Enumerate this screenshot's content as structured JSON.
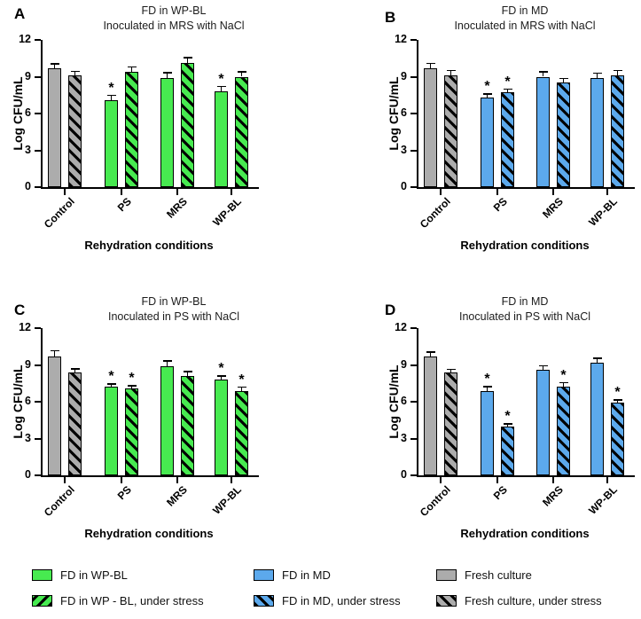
{
  "figure": {
    "ylabel": "Log CFU/mL",
    "xlabel": "Rehydration conditions",
    "yticks": [
      0,
      3,
      6,
      9,
      12
    ],
    "ylim": [
      0,
      12
    ],
    "sig_marker": "*"
  },
  "colors": {
    "green": "#47ea50",
    "blue": "#5ca9ec",
    "gray": "#acacac",
    "axis": "#000000",
    "hatch": "#000000"
  },
  "legend": {
    "items": [
      {
        "label": "FD in WP-BL",
        "color": "green",
        "hatch": false
      },
      {
        "label": "FD in MD",
        "color": "blue",
        "hatch": false
      },
      {
        "label": "Fresh culture",
        "color": "gray",
        "hatch": false
      },
      {
        "label": "FD in WP - BL, under stress",
        "color": "green",
        "hatch": true
      },
      {
        "label": "FD in MD, under stress",
        "color": "blue",
        "hatch": true
      },
      {
        "label": "Fresh culture, under stress",
        "color": "gray",
        "hatch": true
      }
    ]
  },
  "chart_data": [
    {
      "id": "A",
      "type": "bar",
      "title_line1": "FD in WP-BL",
      "title_line2": "Inoculated in MRS with NaCl",
      "ylabel": "Log CFU/mL",
      "xlabel": "Rehydration conditions",
      "ylim": [
        0,
        12
      ],
      "categories": [
        "Control",
        "PS",
        "MRS",
        "WP-BL"
      ],
      "groups": [
        {
          "category": "Control",
          "bars": [
            {
              "series": "Fresh culture",
              "color": "gray",
              "hatch": false,
              "value": 9.7,
              "error": 0.4,
              "significant": false
            },
            {
              "series": "Fresh culture, under stress",
              "color": "gray",
              "hatch": true,
              "value": 9.1,
              "error": 0.4,
              "significant": false
            }
          ]
        },
        {
          "category": "PS",
          "bars": [
            {
              "series": "FD in WP-BL",
              "color": "green",
              "hatch": false,
              "value": 7.1,
              "error": 0.45,
              "significant": true
            },
            {
              "series": "FD in WP - BL, under stress",
              "color": "green",
              "hatch": true,
              "value": 9.4,
              "error": 0.45,
              "significant": false
            }
          ]
        },
        {
          "category": "MRS",
          "bars": [
            {
              "series": "FD in WP-BL",
              "color": "green",
              "hatch": false,
              "value": 8.9,
              "error": 0.5,
              "significant": false
            },
            {
              "series": "FD in WP - BL, under stress",
              "color": "green",
              "hatch": true,
              "value": 10.1,
              "error": 0.5,
              "significant": false
            }
          ]
        },
        {
          "category": "WP-BL",
          "bars": [
            {
              "series": "FD in WP-BL",
              "color": "green",
              "hatch": false,
              "value": 7.8,
              "error": 0.45,
              "significant": true
            },
            {
              "series": "FD in WP - BL, under stress",
              "color": "green",
              "hatch": true,
              "value": 9.0,
              "error": 0.45,
              "significant": false
            }
          ]
        }
      ]
    },
    {
      "id": "B",
      "type": "bar",
      "title_line1": "FD in MD",
      "title_line2": "Inoculated in MRS with NaCl",
      "ylabel": "Log CFU/mL",
      "xlabel": "Rehydration conditions",
      "ylim": [
        0,
        12
      ],
      "categories": [
        "Control",
        "PS",
        "MRS",
        "WP-BL"
      ],
      "groups": [
        {
          "category": "Control",
          "bars": [
            {
              "series": "Fresh culture",
              "color": "gray",
              "hatch": false,
              "value": 9.7,
              "error": 0.45,
              "significant": false
            },
            {
              "series": "Fresh culture, under stress",
              "color": "gray",
              "hatch": true,
              "value": 9.1,
              "error": 0.45,
              "significant": false
            }
          ]
        },
        {
          "category": "PS",
          "bars": [
            {
              "series": "FD in MD",
              "color": "blue",
              "hatch": false,
              "value": 7.3,
              "error": 0.35,
              "significant": true
            },
            {
              "series": "FD in MD, under stress",
              "color": "blue",
              "hatch": true,
              "value": 7.7,
              "error": 0.35,
              "significant": true
            }
          ]
        },
        {
          "category": "MRS",
          "bars": [
            {
              "series": "FD in MD",
              "color": "blue",
              "hatch": false,
              "value": 9.0,
              "error": 0.45,
              "significant": false
            },
            {
              "series": "FD in MD, under stress",
              "color": "blue",
              "hatch": true,
              "value": 8.5,
              "error": 0.4,
              "significant": false
            }
          ]
        },
        {
          "category": "WP-BL",
          "bars": [
            {
              "series": "FD in MD",
              "color": "blue",
              "hatch": false,
              "value": 8.9,
              "error": 0.45,
              "significant": false
            },
            {
              "series": "FD in MD, under stress",
              "color": "blue",
              "hatch": true,
              "value": 9.1,
              "error": 0.45,
              "significant": false
            }
          ]
        }
      ]
    },
    {
      "id": "C",
      "type": "bar",
      "title_line1": "FD in WP-BL",
      "title_line2": "Inoculated in PS with NaCl",
      "ylabel": "Log CFU/mL",
      "xlabel": "Rehydration conditions",
      "ylim": [
        0,
        12
      ],
      "categories": [
        "Control",
        "PS",
        "MRS",
        "WP-BL"
      ],
      "groups": [
        {
          "category": "Control",
          "bars": [
            {
              "series": "Fresh culture",
              "color": "gray",
              "hatch": false,
              "value": 9.7,
              "error": 0.5,
              "significant": false
            },
            {
              "series": "Fresh culture, under stress",
              "color": "gray",
              "hatch": true,
              "value": 8.4,
              "error": 0.35,
              "significant": false
            }
          ]
        },
        {
          "category": "PS",
          "bars": [
            {
              "series": "FD in WP-BL",
              "color": "green",
              "hatch": false,
              "value": 7.2,
              "error": 0.3,
              "significant": true
            },
            {
              "series": "FD in WP - BL, under stress",
              "color": "green",
              "hatch": true,
              "value": 7.1,
              "error": 0.25,
              "significant": true
            }
          ]
        },
        {
          "category": "MRS",
          "bars": [
            {
              "series": "FD in WP-BL",
              "color": "green",
              "hatch": false,
              "value": 8.9,
              "error": 0.5,
              "significant": false
            },
            {
              "series": "FD in WP - BL, under stress",
              "color": "green",
              "hatch": true,
              "value": 8.1,
              "error": 0.4,
              "significant": false
            }
          ]
        },
        {
          "category": "WP-BL",
          "bars": [
            {
              "series": "FD in WP-BL",
              "color": "green",
              "hatch": false,
              "value": 7.8,
              "error": 0.35,
              "significant": true
            },
            {
              "series": "FD in WP - BL, under stress",
              "color": "green",
              "hatch": true,
              "value": 6.9,
              "error": 0.35,
              "significant": true
            }
          ]
        }
      ]
    },
    {
      "id": "D",
      "type": "bar",
      "title_line1": "FD in MD",
      "title_line2": "Inoculated in PS with NaCl",
      "ylabel": "Log CFU/mL",
      "xlabel": "Rehydration conditions",
      "ylim": [
        0,
        12
      ],
      "categories": [
        "Control",
        "PS",
        "MRS",
        "WP-BL"
      ],
      "groups": [
        {
          "category": "Control",
          "bars": [
            {
              "series": "Fresh culture",
              "color": "gray",
              "hatch": false,
              "value": 9.7,
              "error": 0.4,
              "significant": false
            },
            {
              "series": "Fresh culture, under stress",
              "color": "gray",
              "hatch": true,
              "value": 8.4,
              "error": 0.3,
              "significant": false
            }
          ]
        },
        {
          "category": "PS",
          "bars": [
            {
              "series": "FD in MD",
              "color": "blue",
              "hatch": false,
              "value": 6.9,
              "error": 0.4,
              "significant": true
            },
            {
              "series": "FD in MD, under stress",
              "color": "blue",
              "hatch": true,
              "value": 4.0,
              "error": 0.25,
              "significant": true
            }
          ]
        },
        {
          "category": "MRS",
          "bars": [
            {
              "series": "FD in MD",
              "color": "blue",
              "hatch": false,
              "value": 8.6,
              "error": 0.4,
              "significant": false
            },
            {
              "series": "FD in MD, under stress",
              "color": "blue",
              "hatch": true,
              "value": 7.2,
              "error": 0.4,
              "significant": true
            }
          ]
        },
        {
          "category": "WP-BL",
          "bars": [
            {
              "series": "FD in MD",
              "color": "blue",
              "hatch": false,
              "value": 9.2,
              "error": 0.4,
              "significant": false
            },
            {
              "series": "FD in MD, under stress",
              "color": "blue",
              "hatch": true,
              "value": 5.9,
              "error": 0.3,
              "significant": true
            }
          ]
        }
      ]
    }
  ]
}
